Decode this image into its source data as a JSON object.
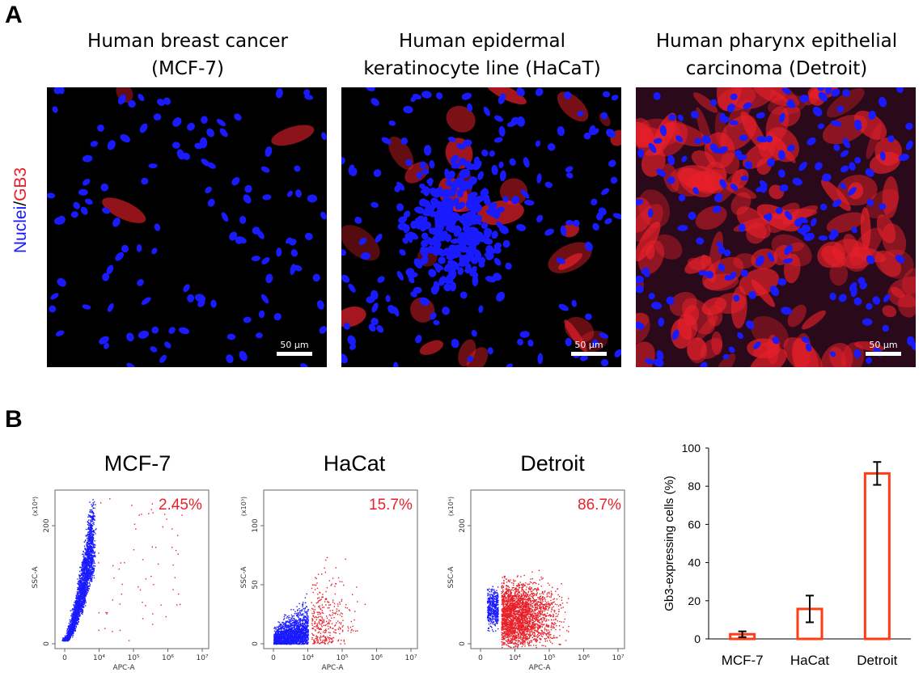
{
  "panel_a": {
    "letter": "A",
    "stain_label": {
      "part1": "Nuclei",
      "sep": "/",
      "part2": "GB3"
    },
    "images": [
      {
        "title_line1": "Human breast cancer",
        "title_line2": "(MCF-7)",
        "scale": "50 µm",
        "gb3_level": 0.02
      },
      {
        "title_line1": "Human epidermal",
        "title_line2": "keratinocyte line (HaCaT)",
        "scale": "50 µm",
        "gb3_level": 0.16
      },
      {
        "title_line1": "Human pharynx epithelial",
        "title_line2": "carcinoma (Detroit)",
        "scale": "50 µm",
        "gb3_level": 0.87
      }
    ]
  },
  "panel_b": {
    "letter": "B",
    "flow_plots": [
      {
        "title": "MCF-7",
        "percent": "2.45%",
        "y_multiplier": "(x10⁴)",
        "y_ticks": [
          "0",
          "200"
        ],
        "ylabel": "SSC-A",
        "xlabel": "APC-A",
        "x_ticks": [
          "0",
          "10⁴",
          "10⁵",
          "10⁶",
          "10⁷"
        ],
        "positive_fraction": 0.0245
      },
      {
        "title": "HaCat",
        "percent": "15.7%",
        "y_multiplier": "(x10³)",
        "y_ticks": [
          "0",
          "50",
          "100"
        ],
        "ylabel": "SSC-A",
        "xlabel": "APC-A",
        "x_ticks": [
          "0",
          "10⁴",
          "10⁵",
          "10⁶",
          "10⁷"
        ],
        "positive_fraction": 0.157
      },
      {
        "title": "Detroit",
        "percent": "86.7%",
        "y_multiplier": "(x10⁴)",
        "y_ticks": [
          "0",
          "200"
        ],
        "ylabel": "SSC-A",
        "xlabel": "APC-A",
        "x_ticks": [
          "0",
          "10⁴",
          "10⁵",
          "10⁶",
          "10⁷"
        ],
        "positive_fraction": 0.867
      }
    ]
  },
  "chart_data": {
    "type": "bar",
    "categories": [
      "MCF-7",
      "HaCat",
      "Detroit"
    ],
    "values": [
      2.45,
      15.7,
      86.7
    ],
    "error": [
      1.5,
      7,
      6
    ],
    "ylabel": "Gb3-expressing cells (%)",
    "ylim": [
      0,
      100
    ],
    "yticks": [
      0,
      20,
      40,
      60,
      80,
      100
    ],
    "grid": false,
    "colors": {
      "bar_edge": "#ff3c14",
      "bar_fill": "#ffffff",
      "error": "#000000"
    }
  },
  "colors": {
    "nuclei": "#1a1aff",
    "gb3": "#e8202a"
  }
}
